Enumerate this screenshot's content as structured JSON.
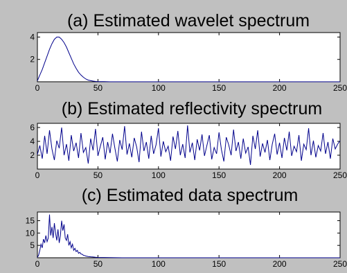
{
  "colors": {
    "figure_bg": "#c0c0c0",
    "axes_bg": "#ffffff",
    "line": "#00008b",
    "axis": "#000000"
  },
  "chart_data": [
    {
      "type": "line",
      "title": "(a) Estimated wavelet spectrum",
      "xlabel": "",
      "ylabel": "",
      "xlim": [
        0,
        250
      ],
      "ylim": [
        0,
        4.4
      ],
      "xticks": [
        "0",
        "50",
        "100",
        "150",
        "200",
        "250"
      ],
      "yticks": [
        2,
        4
      ],
      "grid": false,
      "series": [
        {
          "x": [
            0,
            2,
            4,
            6,
            8,
            10,
            12,
            14,
            16,
            18,
            20,
            22,
            24,
            26,
            28,
            30,
            32,
            34,
            36,
            38,
            40,
            42,
            44,
            46,
            48,
            50,
            55,
            60,
            80,
            120,
            160,
            200,
            250
          ],
          "y": [
            0.1,
            0.6,
            1.1,
            1.7,
            2.3,
            2.9,
            3.4,
            3.8,
            4.0,
            4.0,
            3.8,
            3.5,
            3.1,
            2.6,
            2.1,
            1.6,
            1.2,
            0.85,
            0.6,
            0.4,
            0.25,
            0.15,
            0.1,
            0.06,
            0.03,
            0.02,
            0.01,
            0.0,
            0.0,
            0.0,
            0.0,
            0.0,
            0.0
          ]
        }
      ]
    },
    {
      "type": "line",
      "title": "(b) Estimated reflectivity spectrum",
      "xlabel": "",
      "ylabel": "",
      "xlim": [
        0,
        250
      ],
      "ylim": [
        0,
        6.6
      ],
      "xticks": [
        "0",
        "50",
        "100",
        "150",
        "200",
        "250"
      ],
      "yticks": [
        2,
        4,
        6
      ],
      "grid": false,
      "series": [
        {
          "x": [
            0,
            2,
            4,
            6,
            8,
            10,
            12,
            14,
            16,
            18,
            20,
            22,
            24,
            26,
            28,
            30,
            32,
            34,
            36,
            38,
            40,
            42,
            44,
            46,
            48,
            50,
            52,
            54,
            56,
            58,
            60,
            62,
            64,
            66,
            68,
            70,
            72,
            74,
            76,
            78,
            80,
            82,
            84,
            86,
            88,
            90,
            92,
            94,
            96,
            98,
            100,
            102,
            104,
            106,
            108,
            110,
            112,
            114,
            116,
            118,
            120,
            122,
            124,
            126,
            128,
            130,
            132,
            134,
            136,
            138,
            140,
            142,
            144,
            146,
            148,
            150,
            152,
            154,
            156,
            158,
            160,
            162,
            164,
            166,
            168,
            170,
            172,
            174,
            176,
            178,
            180,
            182,
            184,
            186,
            188,
            190,
            192,
            194,
            196,
            198,
            200,
            202,
            204,
            206,
            208,
            210,
            212,
            214,
            216,
            218,
            220,
            222,
            224,
            226,
            228,
            230,
            232,
            234,
            236,
            238,
            240,
            242,
            244,
            246,
            248,
            250
          ],
          "y": [
            2.1,
            3.4,
            1.5,
            4.8,
            2.2,
            5.6,
            2.9,
            1.3,
            4.1,
            3.0,
            6.0,
            2.0,
            3.6,
            1.2,
            4.9,
            2.6,
            3.8,
            1.6,
            5.2,
            2.4,
            3.1,
            0.8,
            4.4,
            2.7,
            5.8,
            1.9,
            3.3,
            4.6,
            1.4,
            3.9,
            2.3,
            5.1,
            3.0,
            1.1,
            4.2,
            2.8,
            6.2,
            2.1,
            3.7,
            1.7,
            4.5,
            3.2,
            1.0,
            5.4,
            2.6,
            3.9,
            1.5,
            4.8,
            2.2,
            3.5,
            5.9,
            1.8,
            4.0,
            2.5,
            3.3,
            1.2,
            4.7,
            2.9,
            5.5,
            2.0,
            3.6,
            1.6,
            6.3,
            2.4,
            3.8,
            1.3,
            4.3,
            2.7,
            5.0,
            1.9,
            3.4,
            4.9,
            1.4,
            3.1,
            2.2,
            5.3,
            2.8,
            1.1,
            4.6,
            3.5,
            2.0,
            5.7,
            2.6,
            3.9,
            1.5,
            4.4,
            2.3,
            3.2,
            0.6,
            4.8,
            2.9,
            5.6,
            1.8,
            3.7,
            2.4,
            4.2,
            1.3,
            3.6,
            5.1,
            2.1,
            3.8,
            1.6,
            4.5,
            2.7,
            5.4,
            1.9,
            3.3,
            2.5,
            4.9,
            1.2,
            3.6,
            2.8,
            5.9,
            2.0,
            4.1,
            1.7,
            3.4,
            2.6,
            5.2,
            2.2,
            3.9,
            1.5,
            4.4,
            2.9,
            3.6,
            4.1
          ]
        }
      ]
    },
    {
      "type": "line",
      "title": "(c) Estimated data spectrum",
      "xlabel": "",
      "ylabel": "",
      "xlim": [
        0,
        250
      ],
      "ylim": [
        0,
        18.5
      ],
      "xticks": [
        "0",
        "50",
        "100",
        "150",
        "200",
        "250"
      ],
      "yticks": [
        5,
        10,
        15
      ],
      "grid": false,
      "series": [
        {
          "x": [
            0,
            1,
            2,
            3,
            4,
            5,
            6,
            7,
            8,
            9,
            10,
            11,
            12,
            13,
            14,
            15,
            16,
            17,
            18,
            19,
            20,
            21,
            22,
            23,
            24,
            25,
            26,
            27,
            28,
            29,
            30,
            31,
            32,
            33,
            34,
            35,
            36,
            37,
            38,
            39,
            40,
            42,
            44,
            46,
            48,
            50,
            55,
            60,
            70,
            100,
            150,
            200,
            250
          ],
          "y": [
            0.2,
            1.0,
            3.0,
            5.5,
            4.0,
            7.5,
            6.0,
            9.0,
            6.5,
            8.0,
            17.5,
            9.0,
            12.5,
            8.0,
            14.0,
            10.0,
            7.0,
            11.5,
            6.0,
            9.0,
            15.0,
            11.0,
            13.5,
            8.0,
            7.0,
            9.5,
            5.0,
            6.5,
            4.0,
            5.5,
            3.0,
            3.8,
            2.5,
            3.0,
            1.8,
            2.2,
            1.5,
            1.4,
            1.0,
            0.9,
            0.7,
            0.5,
            0.4,
            0.3,
            0.2,
            0.15,
            0.1,
            0.05,
            0.0,
            0.0,
            0.0,
            0.0,
            0.0
          ]
        }
      ]
    }
  ]
}
